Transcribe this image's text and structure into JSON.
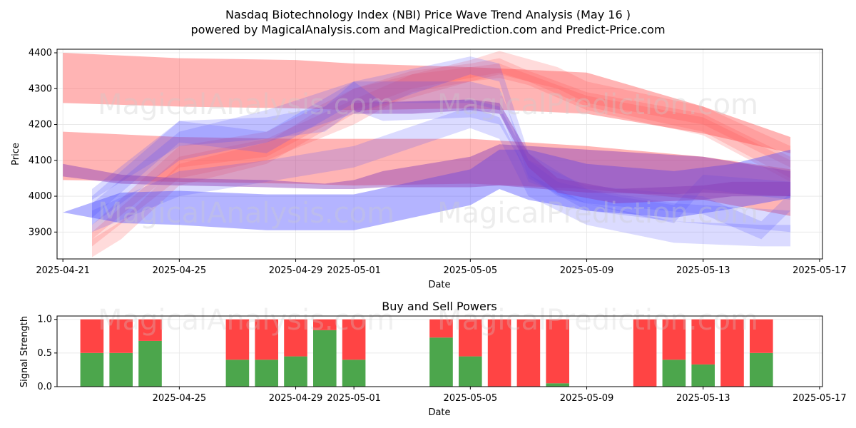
{
  "title_line1": "Nasdaq Biotechnology Index (NBI) Price Wave Trend Analysis (May 16 )",
  "title_line2": "powered by MagicalAnalysis.com and MagicalPrediction.com and Predict-Price.com",
  "watermarks": [
    "MagicalAnalysis.com",
    "MagicalPrediction.com"
  ],
  "colors": {
    "sell_band": "#ff4d4d",
    "buy_band": "#4d4dff",
    "buy_bar": "#4ca64c",
    "sell_bar": "#ff4444"
  },
  "chart_data": [
    {
      "type": "area",
      "xlabel": "Date",
      "ylabel": "Price",
      "ylim": [
        3825,
        4410
      ],
      "y_ticks": [
        3900,
        4000,
        4100,
        4200,
        4300,
        4400
      ],
      "x_ticks": [
        "2025-04-21",
        "2025-04-25",
        "2025-04-29",
        "2025-05-01",
        "2025-05-05",
        "2025-05-09",
        "2025-05-13",
        "2025-05-17"
      ],
      "xlim": [
        "2025-04-20.8",
        "2025-05-17.1"
      ],
      "grid": true,
      "red_bands": [
        {
          "x": [
            "2025-04-21",
            "2025-04-25",
            "2025-04-29",
            "2025-05-01",
            "2025-05-05",
            "2025-05-09",
            "2025-05-13",
            "2025-05-16"
          ],
          "lower": [
            4260,
            4250,
            4245,
            4240,
            4245,
            4230,
            4175,
            4120
          ],
          "upper": [
            4400,
            4385,
            4380,
            4370,
            4360,
            4345,
            4250,
            4165
          ]
        },
        {
          "x": [
            "2025-04-21",
            "2025-04-25",
            "2025-04-29",
            "2025-05-01",
            "2025-05-05",
            "2025-05-09",
            "2025-05-13",
            "2025-05-16"
          ],
          "lower": [
            4045,
            4040,
            4035,
            4030,
            4035,
            4020,
            3990,
            3945
          ],
          "upper": [
            4180,
            4165,
            4160,
            4160,
            4160,
            4140,
            4110,
            4075
          ]
        },
        {
          "x": [
            "2025-04-22",
            "2025-04-25",
            "2025-04-28",
            "2025-05-01",
            "2025-05-03",
            "2025-05-05",
            "2025-05-06",
            "2025-05-07",
            "2025-05-09",
            "2025-05-13",
            "2025-05-16"
          ],
          "lower": [
            3880,
            4080,
            4110,
            4240,
            4300,
            4330,
            4345,
            4320,
            4250,
            4180,
            4050
          ],
          "upper": [
            3920,
            4140,
            4180,
            4300,
            4350,
            4370,
            4385,
            4350,
            4290,
            4230,
            4110
          ]
        },
        {
          "x": [
            "2025-04-22",
            "2025-04-25",
            "2025-04-28",
            "2025-05-01",
            "2025-05-03",
            "2025-05-05",
            "2025-05-06",
            "2025-05-07",
            "2025-05-09",
            "2025-05-13",
            "2025-05-16"
          ],
          "lower": [
            3860,
            4050,
            4100,
            4200,
            4290,
            4320,
            4330,
            4310,
            4240,
            4170,
            4040
          ],
          "upper": [
            3900,
            4110,
            4160,
            4270,
            4340,
            4360,
            4370,
            4340,
            4280,
            4220,
            4100
          ]
        },
        {
          "x": [
            "2025-04-22",
            "2025-04-23",
            "2025-04-25",
            "2025-04-28",
            "2025-05-01",
            "2025-05-05",
            "2025-05-06",
            "2025-05-08",
            "2025-05-09",
            "2025-05-13",
            "2025-05-16"
          ],
          "lower": [
            3830,
            3880,
            4030,
            4090,
            4230,
            4320,
            4340,
            4300,
            4260,
            4200,
            4080
          ],
          "upper": [
            3880,
            3930,
            4090,
            4150,
            4300,
            4380,
            4405,
            4360,
            4320,
            4250,
            4140
          ]
        }
      ],
      "blue_bands": [
        {
          "x": [
            "2025-04-21",
            "2025-04-23",
            "2025-04-25",
            "2025-04-28",
            "2025-05-01",
            "2025-05-05",
            "2025-05-06",
            "2025-05-07",
            "2025-05-09",
            "2025-05-12",
            "2025-05-14",
            "2025-05-16"
          ],
          "lower": [
            3955,
            3925,
            3920,
            3905,
            3905,
            3975,
            4020,
            3990,
            3960,
            3940,
            3965,
            3995
          ],
          "upper": [
            3955,
            4010,
            4015,
            4005,
            4005,
            4075,
            4130,
            4130,
            4090,
            4070,
            4090,
            4130
          ]
        },
        {
          "x": [
            "2025-04-22",
            "2025-04-25",
            "2025-04-28",
            "2025-04-30",
            "2025-05-01",
            "2025-05-02",
            "2025-05-05",
            "2025-05-06",
            "2025-05-07",
            "2025-05-08",
            "2025-05-10",
            "2025-05-12",
            "2025-05-13",
            "2025-05-16"
          ],
          "lower": [
            3990,
            4140,
            4160,
            4180,
            4240,
            4210,
            4220,
            4200,
            4060,
            4000,
            3960,
            3925,
            4020,
            3990
          ],
          "upper": [
            4020,
            4210,
            4220,
            4250,
            4320,
            4260,
            4270,
            4250,
            4100,
            4040,
            4000,
            3975,
            4060,
            4040
          ]
        },
        {
          "x": [
            "2025-04-22",
            "2025-04-25",
            "2025-04-28",
            "2025-05-01",
            "2025-05-05",
            "2025-05-06",
            "2025-05-07",
            "2025-05-09",
            "2025-05-12",
            "2025-05-16"
          ],
          "lower": [
            3920,
            4100,
            4150,
            4230,
            4340,
            4320,
            4050,
            3960,
            3930,
            3900
          ],
          "upper": [
            3980,
            4180,
            4240,
            4320,
            4390,
            4370,
            4120,
            4020,
            3980,
            3960
          ]
        },
        {
          "x": [
            "2025-04-22",
            "2025-04-25",
            "2025-04-28",
            "2025-05-01",
            "2025-05-05",
            "2025-05-06",
            "2025-05-07",
            "2025-05-09",
            "2025-05-12",
            "2025-05-15",
            "2025-05-16"
          ],
          "lower": [
            3900,
            4000,
            4040,
            4080,
            4190,
            4160,
            4000,
            3920,
            3870,
            3860,
            3860
          ],
          "upper": [
            3960,
            4070,
            4100,
            4140,
            4250,
            4220,
            4060,
            3980,
            3930,
            3920,
            3920
          ]
        },
        {
          "x": [
            "2025-04-22",
            "2025-04-25",
            "2025-04-28",
            "2025-05-01",
            "2025-05-05",
            "2025-05-06",
            "2025-05-07",
            "2025-05-09",
            "2025-05-13",
            "2025-05-15",
            "2025-05-16"
          ],
          "lower": [
            3940,
            4150,
            4120,
            4260,
            4260,
            4240,
            4040,
            3980,
            3950,
            3880,
            3960
          ],
          "upper": [
            4000,
            4210,
            4180,
            4320,
            4320,
            4300,
            4100,
            4030,
            4000,
            3930,
            4010
          ]
        }
      ],
      "purple_bands": [
        {
          "x": [
            "2025-04-21",
            "2025-04-23",
            "2025-04-25",
            "2025-04-28",
            "2025-04-30",
            "2025-05-01",
            "2025-05-02",
            "2025-05-05",
            "2025-05-06",
            "2025-05-09",
            "2025-05-12",
            "2025-05-13",
            "2025-05-16"
          ],
          "lower": [
            4055,
            4035,
            4030,
            4025,
            4020,
            4020,
            4025,
            4025,
            4030,
            4010,
            4005,
            4010,
            4000
          ],
          "upper": [
            4090,
            4060,
            4050,
            4045,
            4035,
            4045,
            4070,
            4110,
            4145,
            4130,
            4115,
            4110,
            4070
          ]
        },
        {
          "x": [
            "2025-05-01",
            "2025-05-03",
            "2025-05-05",
            "2025-05-06",
            "2025-05-07",
            "2025-05-08",
            "2025-05-10",
            "2025-05-13",
            "2025-05-14",
            "2025-05-16"
          ],
          "lower": [
            4230,
            4230,
            4240,
            4230,
            4080,
            4010,
            3980,
            3990,
            4000,
            4000
          ],
          "upper": [
            4260,
            4265,
            4270,
            4260,
            4120,
            4050,
            4020,
            4030,
            4040,
            4040
          ]
        }
      ]
    },
    {
      "type": "bar",
      "title": "Buy and Sell Powers",
      "xlabel": "Date",
      "ylabel": "Signal Strength",
      "ylim": [
        0,
        1.05
      ],
      "y_ticks": [
        "0.0",
        "0.5",
        "1.0"
      ],
      "x_ticks": [
        "2025-04-25",
        "2025-04-29",
        "2025-05-01",
        "2025-05-05",
        "2025-05-09",
        "2025-05-13",
        "2025-05-17"
      ],
      "xlim": [
        "2025-04-20.8",
        "2025-05-17.1"
      ],
      "grid": true,
      "series": [
        {
          "name": "buy",
          "values": [
            0.5,
            0.5,
            0.68,
            0.4,
            0.4,
            0.45,
            0.84,
            0.4,
            0.73,
            0.45,
            0.0,
            0.0,
            0.05,
            0.0,
            0.4,
            0.33,
            0.0,
            0.5
          ]
        },
        {
          "name": "sell",
          "values": [
            0.5,
            0.5,
            0.32,
            0.6,
            0.6,
            0.55,
            0.16,
            0.6,
            0.27,
            0.55,
            1.0,
            1.0,
            0.95,
            1.0,
            0.6,
            0.67,
            1.0,
            0.5
          ]
        }
      ],
      "categories": [
        "2025-04-22",
        "2025-04-23",
        "2025-04-24",
        "2025-04-27",
        "2025-04-28",
        "2025-04-29",
        "2025-04-30",
        "2025-05-01",
        "2025-05-04",
        "2025-05-05",
        "2025-05-06",
        "2025-05-07",
        "2025-05-08",
        "2025-05-11",
        "2025-05-12",
        "2025-05-13",
        "2025-05-14",
        "2025-05-15"
      ]
    }
  ]
}
